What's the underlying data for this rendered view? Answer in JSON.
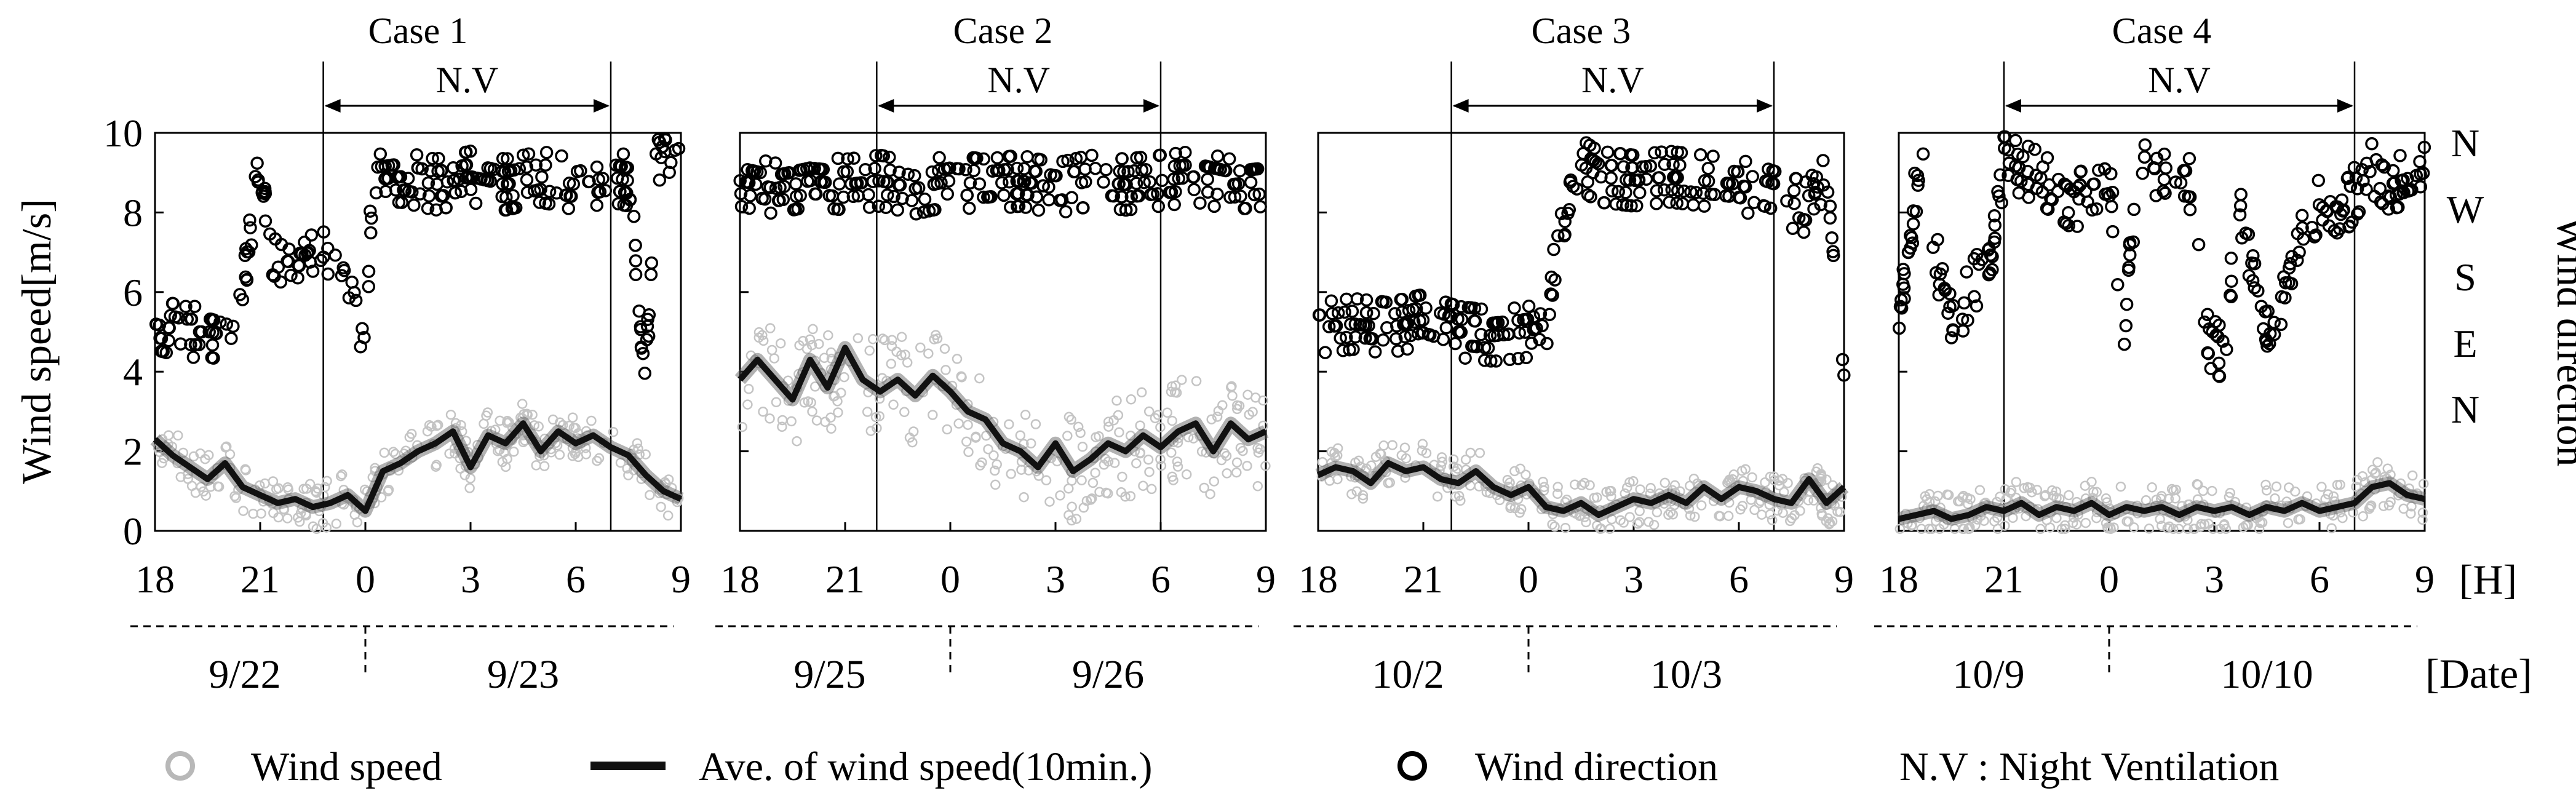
{
  "chart_data": {
    "type": "scatter",
    "ylabel_left": "Wind speed[m/s]",
    "ylabel_right": "Wind direction",
    "ylim_left": [
      0,
      10
    ],
    "yticks_left": [
      "0",
      "2",
      "4",
      "6",
      "8",
      "10"
    ],
    "direction_ticks": [
      "N",
      "W",
      "S",
      "E",
      "N"
    ],
    "direction_values": [
      360,
      270,
      180,
      90,
      0
    ],
    "x_ticks": [
      "18",
      "21",
      "0",
      "3",
      "6",
      "9"
    ],
    "x_tick_hours": [
      18,
      21,
      24,
      27,
      30,
      33
    ],
    "x_unit": "[H]",
    "date_unit": "[Date]",
    "nv_label": "N.V",
    "legend": {
      "wind_speed": "Wind speed",
      "avg_speed": "Ave. of wind speed(10min.)",
      "wind_direction": "Wind direction",
      "nv_note": "N.V : Night Ventilation"
    },
    "panels": [
      {
        "title": "Case 1",
        "dates": [
          "9/22",
          "9/23"
        ],
        "nv_start": 22.8,
        "nv_end": 31.0,
        "avg_speed": [
          [
            18,
            2.3
          ],
          [
            18.5,
            1.9
          ],
          [
            19,
            1.6
          ],
          [
            19.5,
            1.3
          ],
          [
            20,
            1.7
          ],
          [
            20.5,
            1.1
          ],
          [
            21,
            0.9
          ],
          [
            21.5,
            0.7
          ],
          [
            22,
            0.8
          ],
          [
            22.5,
            0.6
          ],
          [
            23,
            0.7
          ],
          [
            23.5,
            0.9
          ],
          [
            24,
            0.5
          ],
          [
            24.5,
            1.5
          ],
          [
            25,
            1.7
          ],
          [
            25.5,
            2.0
          ],
          [
            26,
            2.2
          ],
          [
            26.5,
            2.5
          ],
          [
            27,
            1.6
          ],
          [
            27.5,
            2.4
          ],
          [
            28,
            2.2
          ],
          [
            28.5,
            2.7
          ],
          [
            29,
            2.0
          ],
          [
            29.5,
            2.5
          ],
          [
            30,
            2.2
          ],
          [
            30.5,
            2.4
          ],
          [
            31,
            2.1
          ],
          [
            31.5,
            1.9
          ],
          [
            32,
            1.4
          ],
          [
            32.5,
            1.0
          ],
          [
            33,
            0.8
          ]
        ],
        "direction": [
          [
            18,
            5.2
          ],
          [
            18.8,
            5.0
          ],
          [
            19.6,
            5.0
          ],
          [
            20.3,
            4.8
          ],
          [
            21,
            9.5
          ],
          [
            21.2,
            7.2
          ],
          [
            21.7,
            6.8
          ],
          [
            22.3,
            6.6
          ],
          [
            22.8,
            7.2
          ],
          [
            23.3,
            6.8
          ],
          [
            23.6,
            6.0
          ],
          [
            24,
            4.4
          ],
          [
            24.2,
            8.8
          ],
          [
            25,
            8.9
          ],
          [
            26,
            8.7
          ],
          [
            27,
            8.9
          ],
          [
            28,
            8.7
          ],
          [
            29,
            8.9
          ],
          [
            30,
            8.7
          ],
          [
            31,
            8.9
          ],
          [
            31.5,
            8.8
          ],
          [
            32,
            4.0
          ],
          [
            32.3,
            9.6
          ],
          [
            32.8,
            8.8
          ],
          [
            33,
            9.5
          ]
        ]
      },
      {
        "title": "Case 2",
        "dates": [
          "9/25",
          "9/26"
        ],
        "nv_start": 21.9,
        "nv_end": 30.0,
        "avg_speed": [
          [
            18,
            3.8
          ],
          [
            18.5,
            4.3
          ],
          [
            19,
            3.8
          ],
          [
            19.5,
            3.3
          ],
          [
            20,
            4.3
          ],
          [
            20.5,
            3.6
          ],
          [
            21,
            4.6
          ],
          [
            21.5,
            3.8
          ],
          [
            22,
            3.5
          ],
          [
            22.5,
            3.8
          ],
          [
            23,
            3.4
          ],
          [
            23.5,
            3.9
          ],
          [
            24,
            3.5
          ],
          [
            24.5,
            3.0
          ],
          [
            25,
            2.8
          ],
          [
            25.5,
            2.2
          ],
          [
            26,
            2.0
          ],
          [
            26.5,
            1.6
          ],
          [
            27,
            2.2
          ],
          [
            27.5,
            1.5
          ],
          [
            28,
            1.8
          ],
          [
            28.5,
            2.2
          ],
          [
            29,
            2.0
          ],
          [
            29.5,
            2.4
          ],
          [
            30,
            2.1
          ],
          [
            30.5,
            2.5
          ],
          [
            31,
            2.7
          ],
          [
            31.5,
            2.0
          ],
          [
            32,
            2.7
          ],
          [
            32.5,
            2.3
          ],
          [
            33,
            2.5
          ]
        ],
        "direction": [
          [
            18,
            8.8
          ],
          [
            19,
            8.6
          ],
          [
            20,
            8.8
          ],
          [
            21,
            8.7
          ],
          [
            22,
            8.8
          ],
          [
            23,
            8.6
          ],
          [
            24,
            8.8
          ],
          [
            25,
            8.7
          ],
          [
            26,
            8.8
          ],
          [
            27,
            8.6
          ],
          [
            28,
            8.8
          ],
          [
            29,
            8.7
          ],
          [
            30,
            8.8
          ],
          [
            31,
            8.9
          ],
          [
            32,
            8.7
          ],
          [
            33,
            8.8
          ]
        ]
      },
      {
        "title": "Case 3",
        "dates": [
          "10/2",
          "10/3"
        ],
        "nv_start": 21.8,
        "nv_end": 31.0,
        "avg_speed": [
          [
            18,
            1.4
          ],
          [
            18.5,
            1.6
          ],
          [
            19,
            1.5
          ],
          [
            19.5,
            1.2
          ],
          [
            20,
            1.7
          ],
          [
            20.5,
            1.5
          ],
          [
            21,
            1.6
          ],
          [
            21.5,
            1.3
          ],
          [
            22,
            1.2
          ],
          [
            22.5,
            1.5
          ],
          [
            23,
            1.1
          ],
          [
            23.5,
            0.9
          ],
          [
            24,
            1.1
          ],
          [
            24.5,
            0.6
          ],
          [
            25,
            0.5
          ],
          [
            25.5,
            0.7
          ],
          [
            26,
            0.4
          ],
          [
            26.5,
            0.6
          ],
          [
            27,
            0.8
          ],
          [
            27.5,
            0.7
          ],
          [
            28,
            0.9
          ],
          [
            28.5,
            0.7
          ],
          [
            29,
            1.1
          ],
          [
            29.5,
            0.8
          ],
          [
            30,
            1.1
          ],
          [
            30.5,
            1.0
          ],
          [
            31,
            0.8
          ],
          [
            31.5,
            0.7
          ],
          [
            32,
            1.3
          ],
          [
            32.5,
            0.7
          ],
          [
            33,
            1.1
          ]
        ],
        "direction": [
          [
            18,
            5.1
          ],
          [
            19,
            5.2
          ],
          [
            20,
            5.1
          ],
          [
            21,
            5.3
          ],
          [
            22,
            5.0
          ],
          [
            23,
            4.9
          ],
          [
            24,
            5.0
          ],
          [
            24.5,
            5.2
          ],
          [
            25,
            8.0
          ],
          [
            25.5,
            9.2
          ],
          [
            26,
            8.9
          ],
          [
            27,
            8.8
          ],
          [
            28,
            8.9
          ],
          [
            29,
            8.8
          ],
          [
            30,
            8.7
          ],
          [
            31,
            8.4
          ],
          [
            32,
            8.1
          ],
          [
            32.5,
            9.2
          ],
          [
            33,
            4.2
          ]
        ]
      },
      {
        "title": "Case 4",
        "dates": [
          "10/9",
          "10/10"
        ],
        "nv_start": 21.0,
        "nv_end": 31.0,
        "avg_speed": [
          [
            18,
            0.3
          ],
          [
            18.5,
            0.4
          ],
          [
            19,
            0.5
          ],
          [
            19.5,
            0.3
          ],
          [
            20,
            0.4
          ],
          [
            20.5,
            0.6
          ],
          [
            21,
            0.5
          ],
          [
            21.5,
            0.7
          ],
          [
            22,
            0.4
          ],
          [
            22.5,
            0.6
          ],
          [
            23,
            0.5
          ],
          [
            23.5,
            0.7
          ],
          [
            24,
            0.4
          ],
          [
            24.5,
            0.6
          ],
          [
            25,
            0.5
          ],
          [
            25.5,
            0.6
          ],
          [
            26,
            0.4
          ],
          [
            26.5,
            0.6
          ],
          [
            27,
            0.5
          ],
          [
            27.5,
            0.6
          ],
          [
            28,
            0.4
          ],
          [
            28.5,
            0.6
          ],
          [
            29,
            0.5
          ],
          [
            29.5,
            0.7
          ],
          [
            30,
            0.5
          ],
          [
            30.5,
            0.6
          ],
          [
            31,
            0.7
          ],
          [
            31.5,
            1.1
          ],
          [
            32,
            1.2
          ],
          [
            32.5,
            0.9
          ],
          [
            33,
            0.8
          ]
        ],
        "direction": [
          [
            18,
            5.0
          ],
          [
            18.6,
            9.4
          ],
          [
            19,
            7.0
          ],
          [
            19.6,
            5.2
          ],
          [
            20,
            6.0
          ],
          [
            20.6,
            6.8
          ],
          [
            21,
            9.3
          ],
          [
            22,
            8.9
          ],
          [
            23,
            8.2
          ],
          [
            23.5,
            8.7
          ],
          [
            24,
            8.8
          ],
          [
            24.4,
            5.0
          ],
          [
            24.8,
            9.0
          ],
          [
            25,
            9.4
          ],
          [
            25.6,
            8.8
          ],
          [
            26.4,
            8.7
          ],
          [
            26.8,
            4.8
          ],
          [
            27.3,
            4.4
          ],
          [
            27.7,
            8.4
          ],
          [
            28,
            7.0
          ],
          [
            28.6,
            4.6
          ],
          [
            29,
            5.8
          ],
          [
            29.5,
            7.6
          ],
          [
            30,
            8.2
          ],
          [
            30.5,
            7.8
          ],
          [
            31,
            8.5
          ],
          [
            31.5,
            9.1
          ],
          [
            32,
            8.7
          ],
          [
            33,
            9.0
          ]
        ]
      }
    ]
  }
}
